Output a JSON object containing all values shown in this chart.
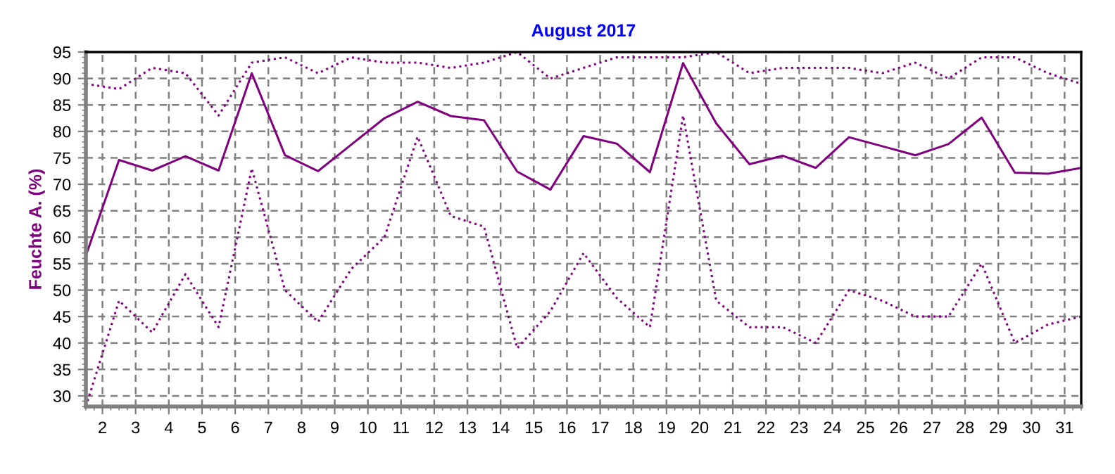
{
  "chart_data": {
    "type": "line",
    "title": "August 2017",
    "ylabel": "Feuchte A. (%)",
    "x": [
      1.5,
      2.5,
      3.5,
      4.5,
      5.5,
      6.5,
      7.5,
      8.5,
      9.5,
      10.5,
      11.5,
      12.5,
      13.5,
      14.5,
      15.5,
      16.5,
      17.5,
      18.5,
      19.5,
      20.5,
      21.5,
      22.5,
      23.5,
      24.5,
      25.5,
      26.5,
      27.5,
      28.5,
      29.5,
      30.5,
      31.5
    ],
    "series": [
      {
        "color": "#800080",
        "line_style": "dotted",
        "values": [
          89,
          88,
          92,
          91,
          83,
          93,
          94,
          91,
          94,
          93,
          93,
          92,
          93,
          95,
          90,
          92,
          94,
          94,
          94,
          95,
          91,
          92,
          92,
          92,
          91,
          93,
          90,
          94,
          94,
          91,
          89
        ]
      },
      {
        "color": "#800080",
        "line_style": "solid",
        "values": [
          56.5,
          74.6,
          72.6,
          75.3,
          72.6,
          91,
          75.5,
          72.5,
          77.5,
          82.5,
          85.6,
          82.9,
          82.1,
          72.4,
          69,
          79.1,
          77.7,
          72.3,
          92.9,
          81.5,
          73.8,
          75.4,
          73.1,
          78.9,
          77.2,
          75.5,
          77.6,
          82.6,
          72.2,
          72,
          73.1
        ]
      },
      {
        "color": "#800080",
        "line_style": "dotted",
        "values": [
          28,
          48,
          42,
          53,
          43,
          73,
          50,
          44,
          54,
          60,
          79,
          64,
          62,
          39,
          46,
          57,
          48.5,
          43,
          83,
          48,
          43,
          43,
          40,
          50,
          48,
          45,
          45,
          55,
          40,
          43.5,
          45
        ]
      }
    ],
    "xlim": [
      1.5,
      31.5
    ],
    "xticks": [
      2,
      3,
      4,
      5,
      6,
      7,
      8,
      9,
      10,
      11,
      12,
      13,
      14,
      15,
      16,
      17,
      18,
      19,
      20,
      21,
      22,
      23,
      24,
      25,
      26,
      27,
      28,
      29,
      30,
      31
    ],
    "ylim": [
      28,
      95
    ],
    "yticks": [
      30,
      35,
      40,
      45,
      50,
      55,
      60,
      65,
      70,
      75,
      80,
      85,
      90,
      95
    ],
    "grid": true,
    "legend": false,
    "marker": "none"
  }
}
